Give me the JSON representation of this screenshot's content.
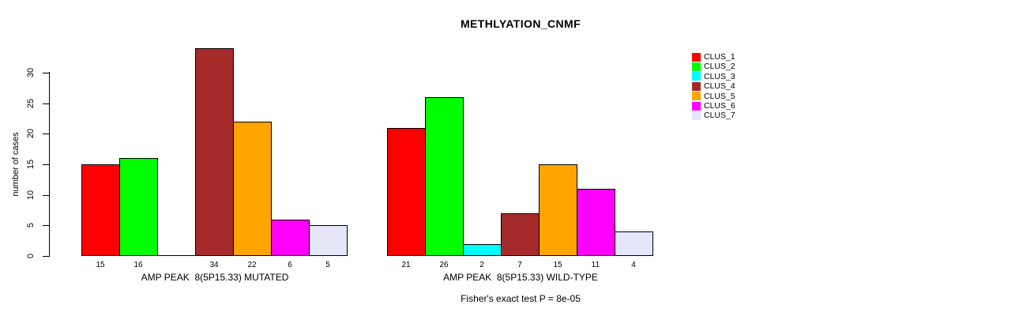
{
  "chart_data": {
    "type": "bar",
    "title": "METHLYATION_CNMF",
    "ylabel": "number of cases",
    "xlabel": "",
    "yticks": [
      0,
      5,
      10,
      15,
      20,
      25,
      30
    ],
    "ylim": [
      0,
      34
    ],
    "grid": false,
    "legend_position": "right",
    "axis_color": "#000000",
    "background_color": "#ffffff",
    "clusters": [
      {
        "name": "CLUS_1",
        "color": "#FF0000"
      },
      {
        "name": "CLUS_2",
        "color": "#00FF00"
      },
      {
        "name": "CLUS_3",
        "color": "#00FFFF"
      },
      {
        "name": "CLUS_4",
        "color": "#A52A2A"
      },
      {
        "name": "CLUS_5",
        "color": "#FFA500"
      },
      {
        "name": "CLUS_6",
        "color": "#FF00FF"
      },
      {
        "name": "CLUS_7",
        "color": "#E6E6FA"
      }
    ],
    "groups": [
      {
        "label": "AMP PEAK  8(5P15.33) MUTATED",
        "values": [
          15,
          16,
          0,
          34,
          22,
          6,
          5
        ]
      },
      {
        "label": "AMP PEAK  8(5P15.33) WILD-TYPE",
        "values": [
          21,
          26,
          2,
          7,
          15,
          11,
          4
        ]
      }
    ],
    "footnote": "Fisher's exact test P = 8e-05"
  }
}
